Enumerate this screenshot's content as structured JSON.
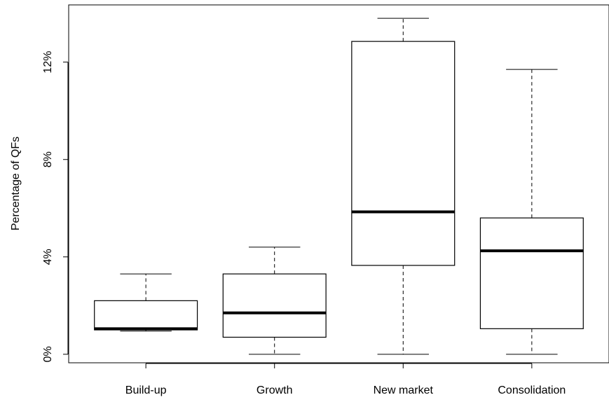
{
  "chart_data": {
    "type": "boxplot",
    "ylabel": "Percentage of QFs",
    "xlabel": "",
    "title": "",
    "categories": [
      "Build-up",
      "Growth",
      "New market",
      "Consolidation"
    ],
    "boxes": [
      {
        "category": "Build-up",
        "min": 0.95,
        "q1": 1.0,
        "median": 1.05,
        "q3": 2.2,
        "max": 3.3
      },
      {
        "category": "Growth",
        "min": 0.0,
        "q1": 0.7,
        "median": 1.7,
        "q3": 3.3,
        "max": 4.4
      },
      {
        "category": "New market",
        "min": 0.0,
        "q1": 3.65,
        "median": 5.85,
        "q3": 12.85,
        "max": 13.8
      },
      {
        "category": "Consolidation",
        "min": 0.0,
        "q1": 1.05,
        "median": 4.25,
        "q3": 5.6,
        "max": 11.7
      }
    ],
    "ylim": [
      -0.35,
      14.35
    ],
    "yticks": [
      0,
      4,
      8,
      12
    ],
    "ytick_labels": [
      "0%",
      "4%",
      "8%",
      "12%"
    ],
    "grid": false
  }
}
